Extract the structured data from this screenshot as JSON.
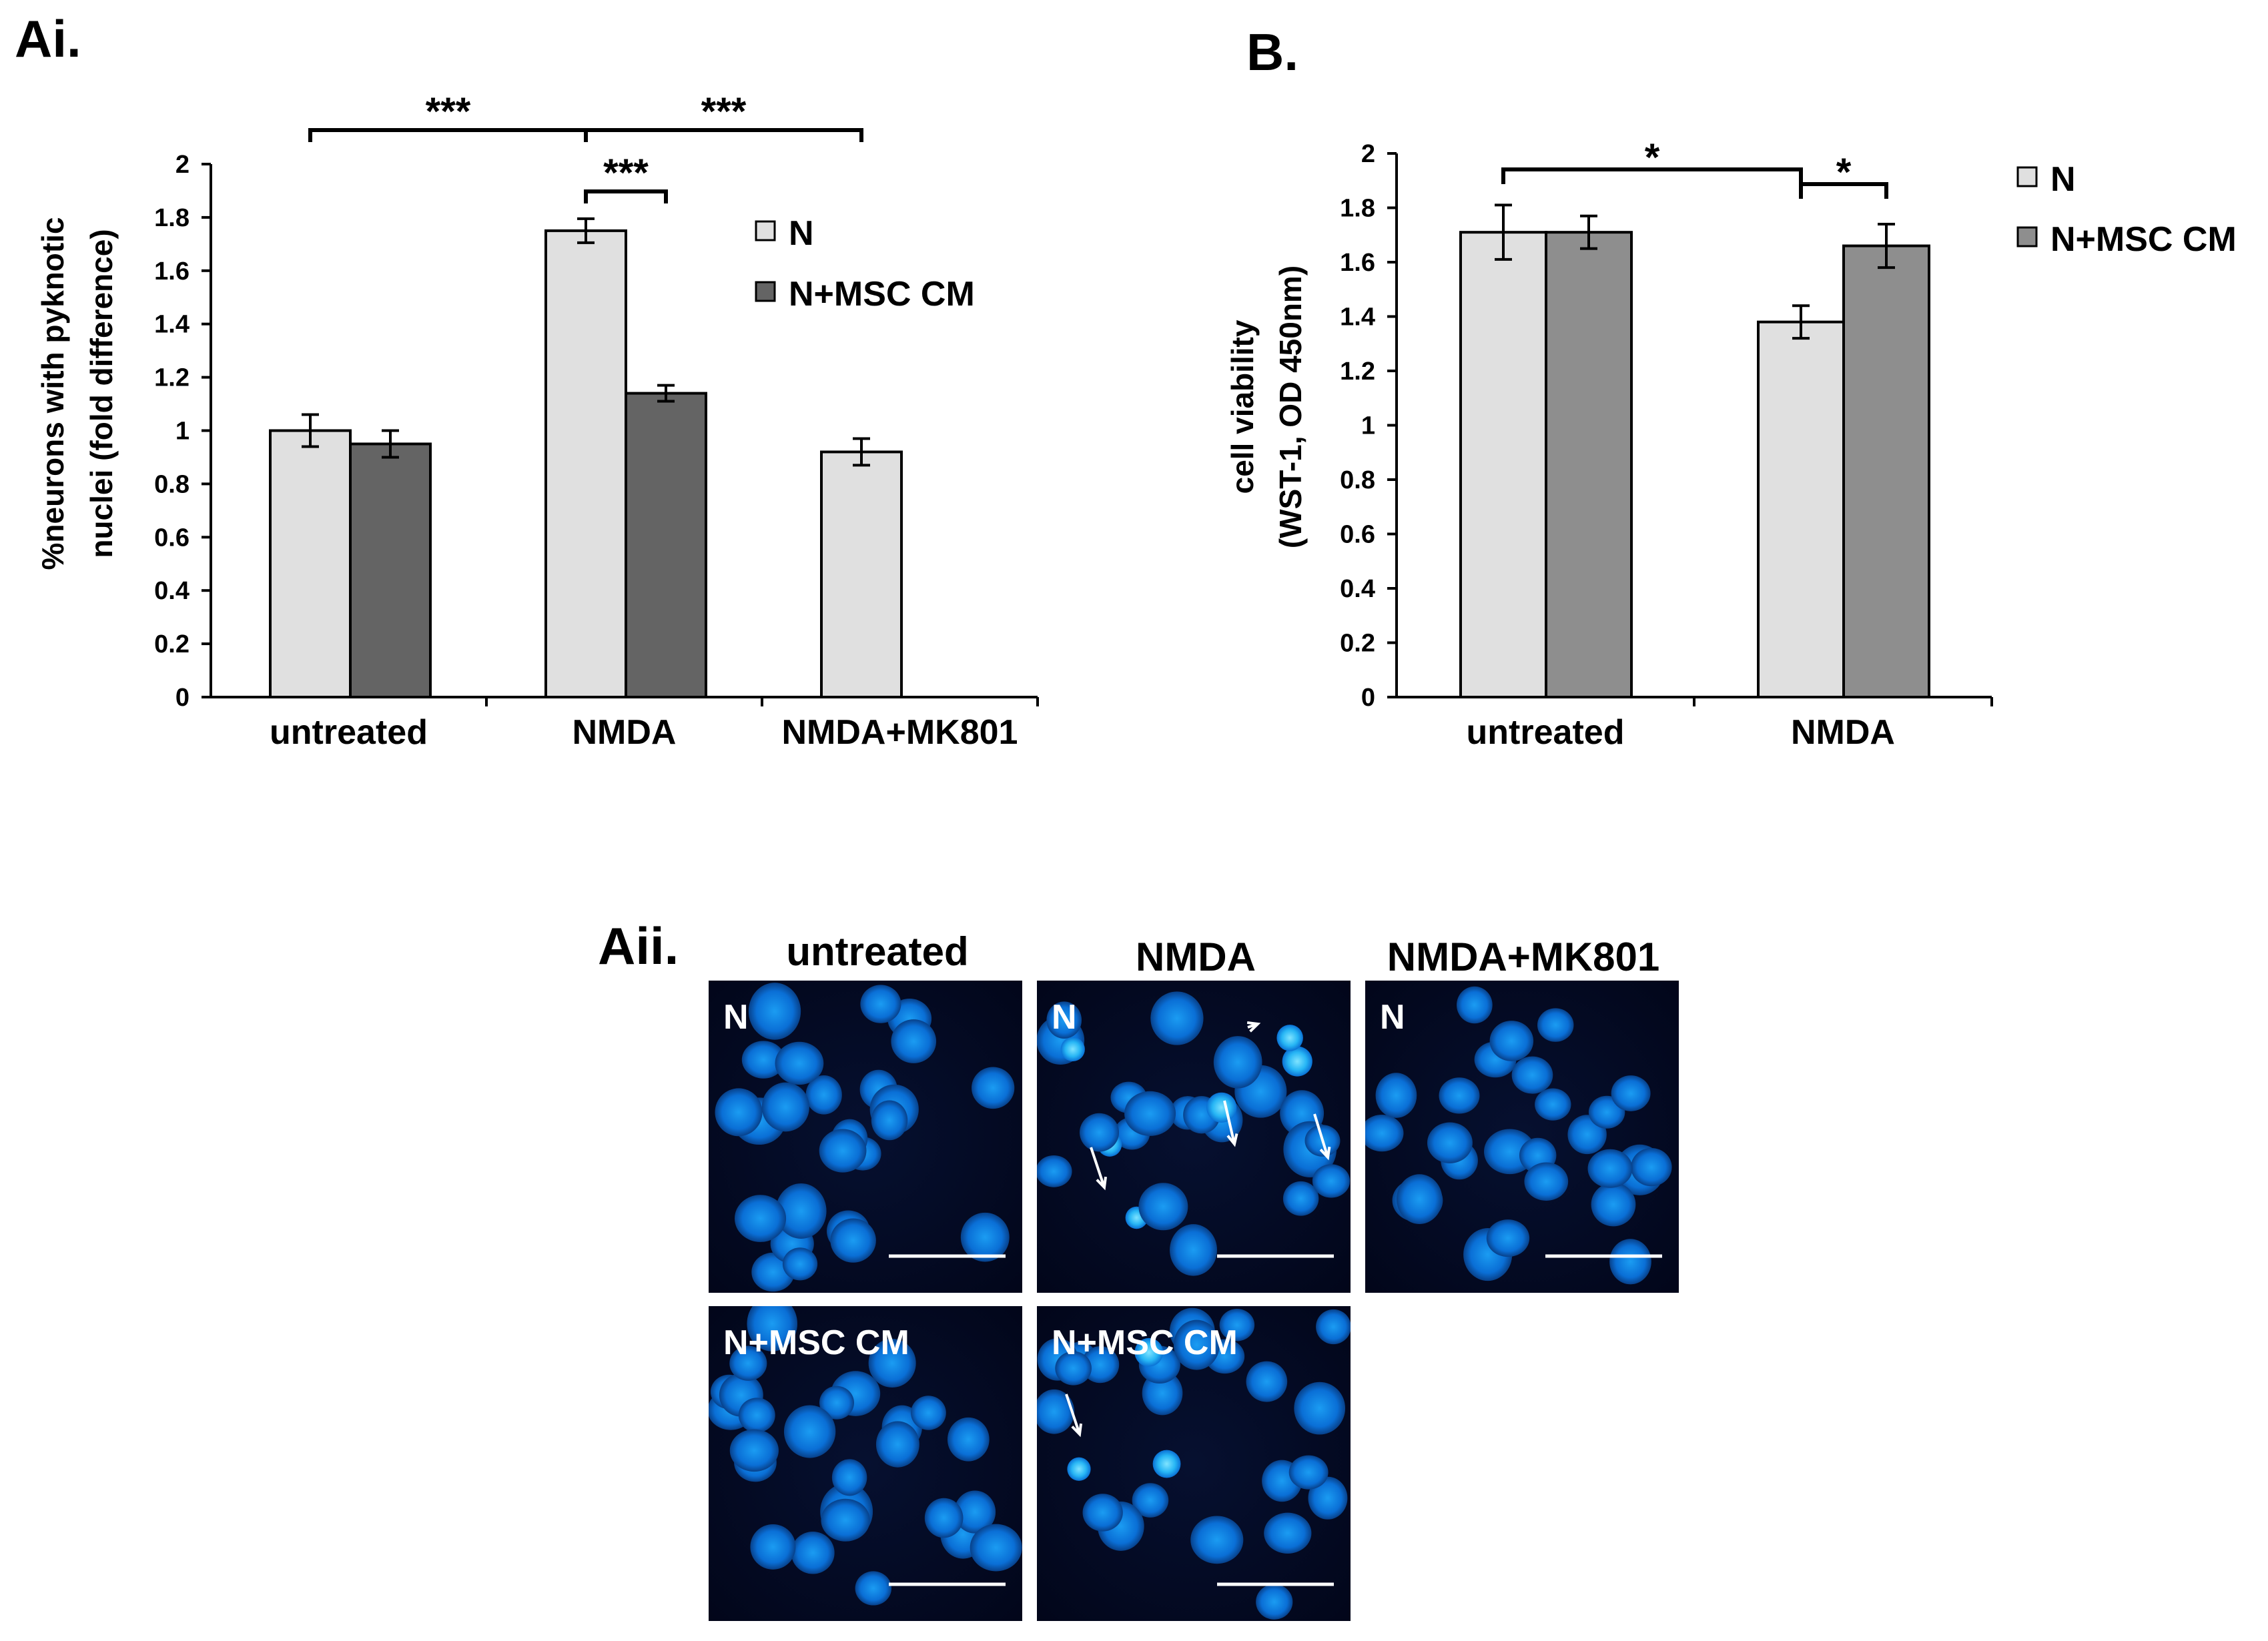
{
  "figure": {
    "panel_ai": "Ai.",
    "panel_b": "B.",
    "panel_aii": "Aii."
  },
  "chart_data": [
    {
      "id": "Ai",
      "type": "bar",
      "title": "",
      "xlabel": "",
      "ylabel": "%neurons with pyknotic nuclei (fold difference)",
      "ylabel_lines": [
        "%neurons with pyknotic",
        "nuclei (fold difference)"
      ],
      "ylim": [
        0,
        2
      ],
      "yticks": [
        "0",
        "0.2",
        "0.4",
        "0.6",
        "0.8",
        "1",
        "1.2",
        "1.4",
        "1.6",
        "1.8",
        "2"
      ],
      "categories": [
        "untreated",
        "NMDA",
        "NMDA+MK801"
      ],
      "series": [
        {
          "name": "N",
          "color": "#e0e0e0",
          "values": [
            1.0,
            1.75,
            0.92
          ],
          "errors": [
            0.06,
            0.045,
            0.05
          ]
        },
        {
          "name": "N+MSC CM",
          "color": "#646464",
          "values": [
            0.95,
            1.14,
            null
          ],
          "errors": [
            0.05,
            0.03,
            null
          ]
        }
      ],
      "significance": [
        {
          "from": [
            0,
            0
          ],
          "to": [
            1,
            0
          ],
          "label": "***"
        },
        {
          "from": [
            1,
            0
          ],
          "to": [
            2,
            0
          ],
          "label": "***"
        },
        {
          "from": [
            1,
            0
          ],
          "to": [
            1,
            1
          ],
          "label": "***"
        }
      ],
      "legend": "right",
      "grid": false
    },
    {
      "id": "B",
      "type": "bar",
      "title": "",
      "xlabel": "",
      "ylabel": "cell viability (WST-1, OD 450nm)",
      "ylabel_lines": [
        "cell viability",
        "(WST-1, OD 450nm)"
      ],
      "ylim": [
        0,
        2
      ],
      "yticks": [
        "0",
        "0.2",
        "0.4",
        "0.6",
        "0.8",
        "1",
        "1.2",
        "1.4",
        "1.6",
        "1.8",
        "2"
      ],
      "categories": [
        "untreated",
        "NMDA"
      ],
      "series": [
        {
          "name": "N",
          "color": "#e0e0e0",
          "values": [
            1.71,
            1.38
          ],
          "errors": [
            0.1,
            0.06
          ]
        },
        {
          "name": "N+MSC CM",
          "color": "#8e8e8e",
          "values": [
            1.71,
            1.66
          ],
          "errors": [
            0.06,
            0.08
          ]
        }
      ],
      "significance": [
        {
          "from": [
            0,
            0
          ],
          "to": [
            1,
            0
          ],
          "label": "*"
        },
        {
          "from": [
            1,
            0
          ],
          "to": [
            1,
            1
          ],
          "label": "*"
        }
      ],
      "legend": "top-right",
      "grid": false
    }
  ],
  "micrographs": {
    "columns": [
      "untreated",
      "NMDA",
      "NMDA+MK801"
    ],
    "rows": [
      {
        "tags": [
          "N",
          "N",
          "N"
        ]
      },
      {
        "tags": [
          "N+MSC CM",
          "N+MSC CM"
        ]
      }
    ]
  }
}
